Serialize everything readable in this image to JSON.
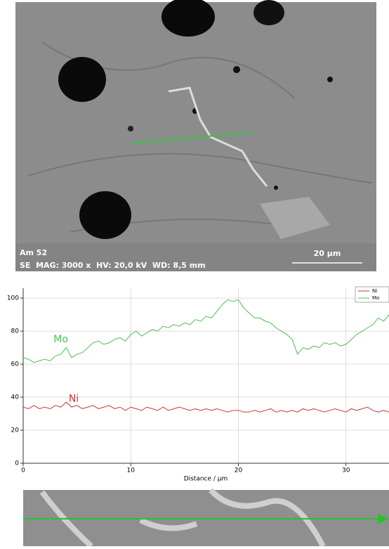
{
  "image": {
    "sample": "Am 52",
    "info": "SE  MAG: 3000 x  HV: 20,0 kV  WD: 8,5 mm",
    "scale_bar": "20 µm"
  },
  "chart_data": {
    "type": "line",
    "xlabel": "Distance / µm",
    "x": [
      0,
      0.5,
      1,
      1.5,
      2,
      2.5,
      3,
      3.5,
      4,
      4.5,
      5,
      5.5,
      6,
      6.5,
      7,
      7.5,
      8,
      8.5,
      9,
      9.5,
      10,
      10.5,
      11,
      11.5,
      12,
      12.5,
      13,
      13.5,
      14,
      14.5,
      15,
      15.5,
      16,
      16.5,
      17,
      17.5,
      18,
      18.5,
      19,
      19.5,
      20,
      20.5,
      21,
      21.5,
      22,
      22.5,
      23,
      23.5,
      24,
      24.5,
      25,
      25.5,
      26,
      26.5,
      27,
      27.5,
      28,
      28.5,
      29,
      29.5,
      30,
      30.5,
      31,
      31.5,
      32,
      32.5,
      33,
      33.5,
      34
    ],
    "series": [
      {
        "name": "Ni",
        "color": "#c0393b",
        "values": [
          34,
          33,
          35,
          33,
          34,
          33,
          35,
          34,
          37,
          34,
          35,
          33,
          34,
          35,
          33,
          34,
          35,
          33,
          34,
          32,
          34,
          33,
          32,
          34,
          33,
          32,
          34,
          32,
          33,
          34,
          33,
          32,
          33,
          32,
          33,
          32,
          33,
          32,
          31,
          32,
          32,
          31,
          31,
          32,
          31,
          32,
          33,
          31,
          32,
          31,
          32,
          31,
          33,
          32,
          33,
          32,
          31,
          32,
          33,
          32,
          31,
          33,
          32,
          33,
          34,
          32,
          31,
          32,
          31
        ]
      },
      {
        "name": "Mo",
        "color": "#4cbf55",
        "values": [
          64,
          63,
          61,
          62,
          63,
          62,
          65,
          66,
          70,
          64,
          66,
          67,
          70,
          73,
          74,
          72,
          73,
          75,
          76,
          74,
          78,
          80,
          77,
          79,
          81,
          80,
          83,
          82,
          84,
          83,
          85,
          84,
          87,
          86,
          89,
          88,
          92,
          96,
          99,
          98,
          99,
          94,
          91,
          88,
          88,
          86,
          85,
          82,
          80,
          78,
          75,
          66,
          70,
          69,
          71,
          70,
          73,
          72,
          73,
          71,
          72,
          75,
          78,
          80,
          82,
          84,
          88,
          86,
          90
        ]
      }
    ],
    "annotations": [
      {
        "text": "Mo",
        "x": 3.5,
        "y": 75,
        "series": 1
      },
      {
        "text": "Ni",
        "x": 4.7,
        "y": 39,
        "series": 0
      }
    ],
    "xlim": [
      0,
      34
    ],
    "xticks": [
      0,
      10,
      20,
      30
    ],
    "ylim": [
      0,
      106
    ],
    "yticks": [
      0,
      20,
      40,
      60,
      80,
      100
    ],
    "grid": true,
    "legend": "top-right"
  }
}
